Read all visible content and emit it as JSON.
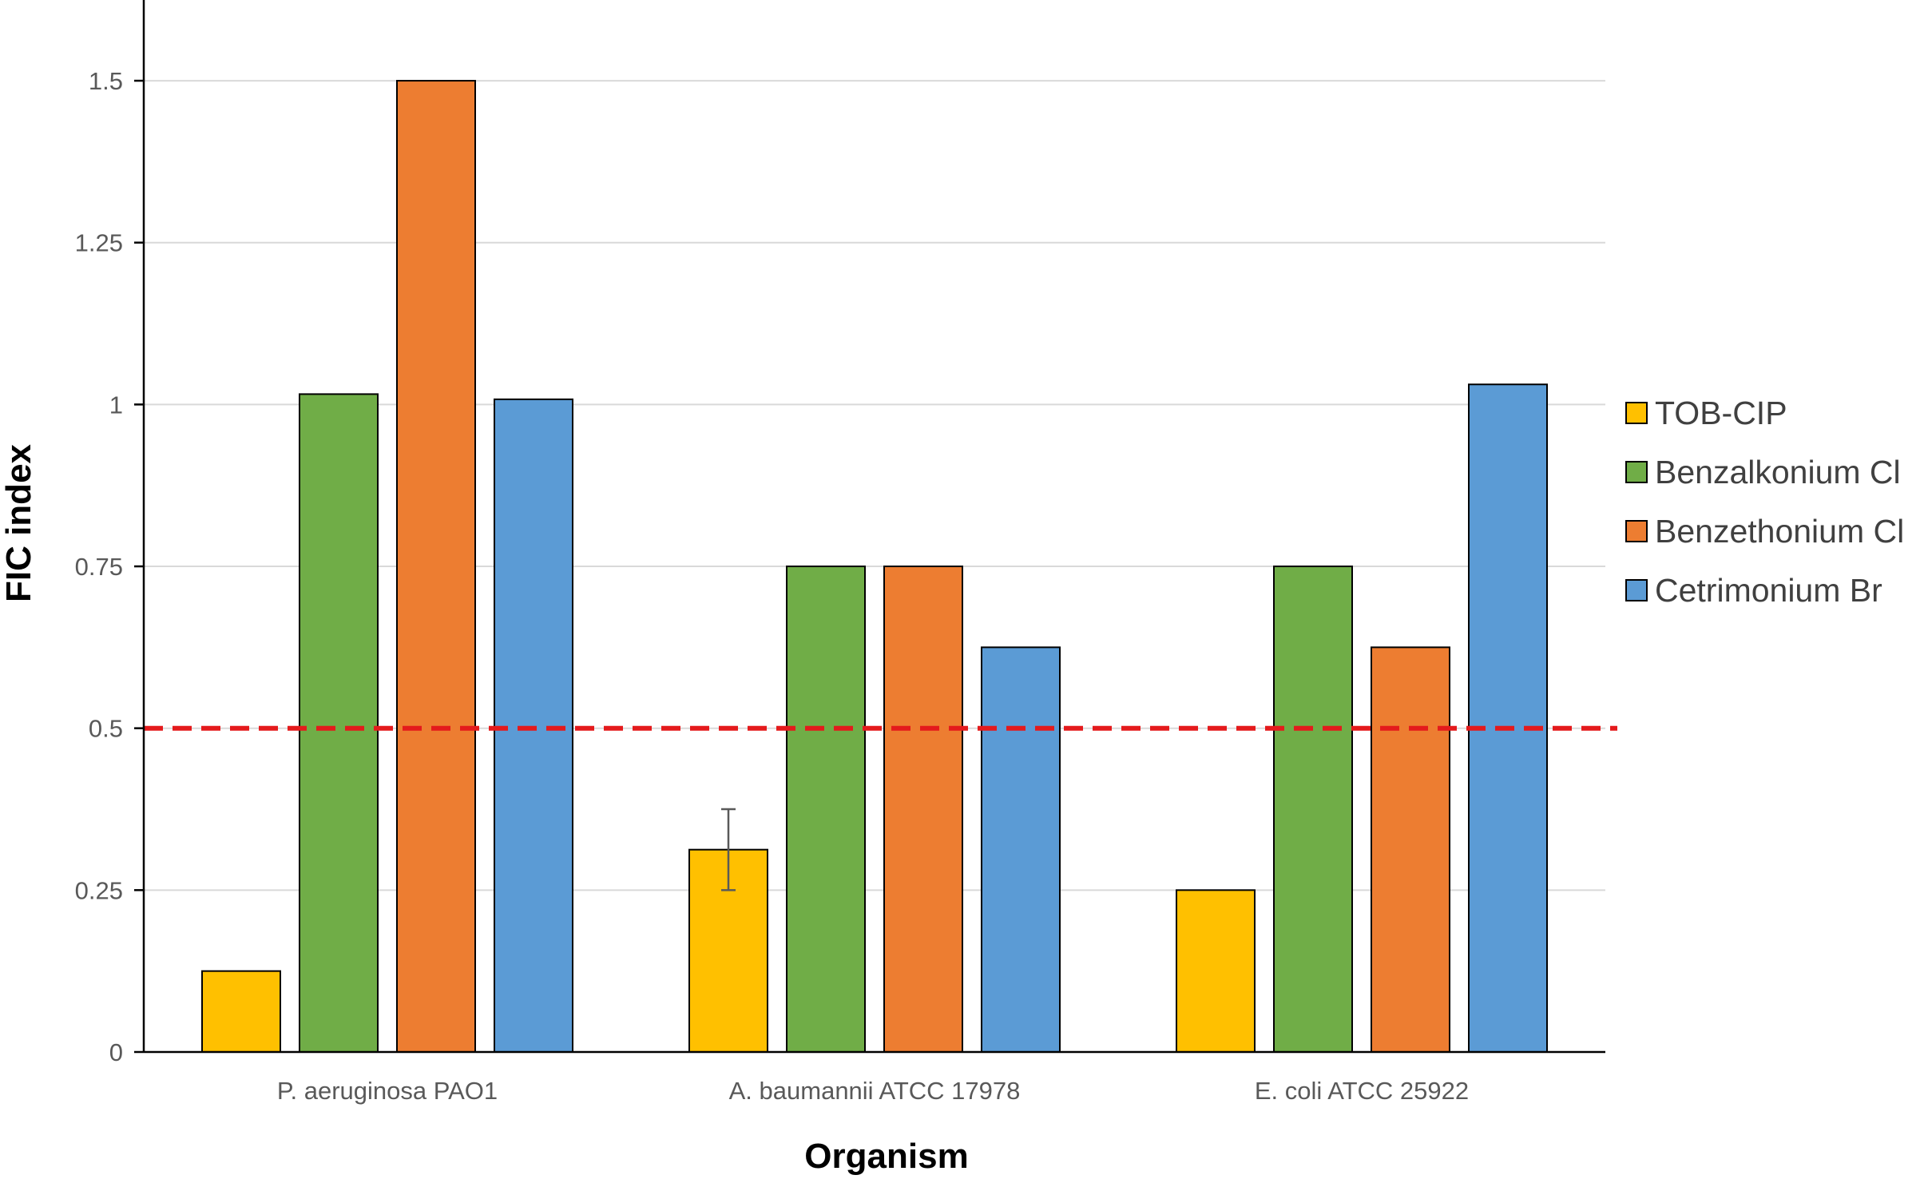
{
  "chart_data": {
    "type": "bar",
    "title": "",
    "xlabel": "Organism",
    "ylabel": "FIC index",
    "categories": [
      "P. aeruginosa PAO1",
      "A. baumannii ATCC 17978",
      "E. coli ATCC 25922"
    ],
    "series": [
      {
        "name": "TOB-CIP",
        "color": "#FFC000",
        "values": [
          0.125,
          0.3125,
          0.25
        ],
        "error": [
          null,
          0.0625,
          null
        ]
      },
      {
        "name": "Benzalkonium Cl",
        "color": "#70AD47",
        "values": [
          1.016,
          0.75,
          0.75
        ]
      },
      {
        "name": "Benzethonium Cl",
        "color": "#ED7D31",
        "values": [
          1.5,
          0.75,
          0.625
        ]
      },
      {
        "name": "Cetrimonium Br",
        "color": "#5B9BD5",
        "values": [
          1.008,
          0.625,
          1.031
        ]
      }
    ],
    "ylim": [
      0,
      1.6
    ],
    "yticks": [
      0,
      0.25,
      0.5,
      0.75,
      1,
      1.25,
      1.5
    ],
    "ytick_labels": [
      "0",
      "0.25",
      "0.5",
      "0.75",
      "1",
      "1.25",
      "1.5"
    ],
    "grid": true,
    "legend": "right",
    "reference_line": {
      "value": 0.5,
      "color": "#E41A1C",
      "style": "dashed"
    }
  }
}
